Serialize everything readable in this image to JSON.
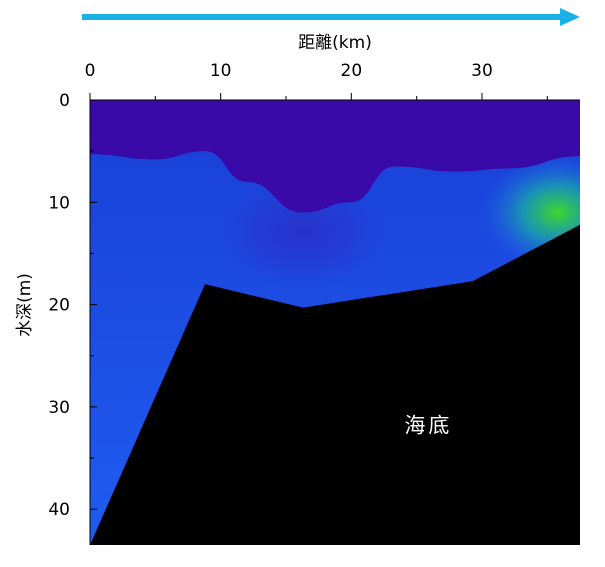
{
  "chart_data": {
    "type": "heatmap",
    "title": "",
    "xlabel": "距離(km)",
    "ylabel": "水深(m)",
    "x_axis_position": "top",
    "xlim": [
      0,
      37.5
    ],
    "ylim": [
      0,
      43.5
    ],
    "y_inverted": true,
    "xticks": [
      0,
      10,
      20,
      30
    ],
    "yticks": [
      0,
      10,
      20,
      30,
      40
    ],
    "x_minor_step": 5,
    "y_minor_step": 5,
    "direction_arrow": "right",
    "colors": {
      "arrow": "#1ab2e6",
      "surface_layer": "#3a0aa8",
      "mid_layer": "#1a3fd6",
      "lower_layer": "#1e5cf0",
      "patch_inner": "#3ed62a",
      "patch_outer": "#1aa0b0",
      "seabed": "#000000"
    },
    "surface_layer_boundary": [
      {
        "x": 0,
        "depth": 5.3
      },
      {
        "x": 5,
        "depth": 5.8
      },
      {
        "x": 8.8,
        "depth": 5.0
      },
      {
        "x": 12,
        "depth": 8.0
      },
      {
        "x": 16.3,
        "depth": 11.0
      },
      {
        "x": 20,
        "depth": 10.0
      },
      {
        "x": 23.3,
        "depth": 6.5
      },
      {
        "x": 28,
        "depth": 7.0
      },
      {
        "x": 32,
        "depth": 6.7
      },
      {
        "x": 37.5,
        "depth": 5.5
      }
    ],
    "seabed_profile": [
      {
        "x": 0,
        "depth": 43.5
      },
      {
        "x": 8.8,
        "depth": 18.0
      },
      {
        "x": 16.3,
        "depth": 20.3
      },
      {
        "x": 29.3,
        "depth": 17.7
      },
      {
        "x": 37.5,
        "depth": 12.2
      }
    ],
    "high_value_patch": {
      "x": 35.8,
      "depth": 11.0
    },
    "annotations": [
      {
        "text": "海底",
        "x": 25.9,
        "depth": 31.8
      }
    ]
  }
}
